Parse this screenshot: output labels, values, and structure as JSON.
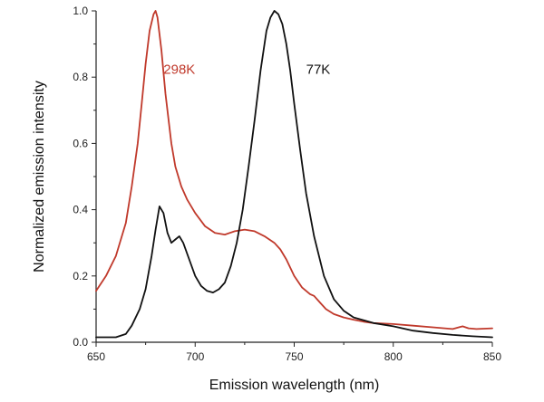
{
  "chart_data": {
    "type": "line",
    "title": "",
    "xlabel": "Emission wavelength (nm)",
    "ylabel": "Normalized emission intensity",
    "xlim": [
      650,
      850
    ],
    "ylim": [
      0,
      1.0
    ],
    "xticks": [
      650,
      700,
      750,
      800,
      850
    ],
    "yticks": [
      0.0,
      0.2,
      0.4,
      0.6,
      0.8,
      1.0
    ],
    "xtick_labels": [
      "650",
      "700",
      "750",
      "800",
      "850"
    ],
    "ytick_labels": [
      "0.0",
      "0.2",
      "0.4",
      "0.6",
      "0.8",
      "1.0"
    ],
    "grid": false,
    "legend": "none",
    "series": [
      {
        "name": "298K",
        "color": "#c0392b",
        "x": [
          650,
          655,
          660,
          665,
          668,
          671,
          673,
          675,
          677,
          679,
          680,
          681,
          683,
          685,
          688,
          690,
          693,
          696,
          700,
          705,
          710,
          715,
          720,
          725,
          730,
          735,
          740,
          743,
          746,
          750,
          754,
          758,
          760,
          763,
          766,
          770,
          775,
          780,
          785,
          790,
          800,
          810,
          820,
          830,
          835,
          838,
          842,
          850
        ],
        "y": [
          0.155,
          0.2,
          0.26,
          0.36,
          0.47,
          0.6,
          0.72,
          0.84,
          0.94,
          0.99,
          1.0,
          0.98,
          0.88,
          0.75,
          0.6,
          0.53,
          0.47,
          0.43,
          0.39,
          0.35,
          0.33,
          0.325,
          0.335,
          0.34,
          0.335,
          0.32,
          0.3,
          0.28,
          0.25,
          0.2,
          0.165,
          0.145,
          0.14,
          0.12,
          0.1,
          0.085,
          0.075,
          0.068,
          0.062,
          0.058,
          0.055,
          0.05,
          0.045,
          0.04,
          0.048,
          0.042,
          0.04,
          0.042
        ]
      },
      {
        "name": "77K",
        "color": "#111111",
        "x": [
          650,
          660,
          665,
          668,
          672,
          675,
          678,
          680,
          682,
          684,
          686,
          688,
          690,
          692,
          694,
          697,
          700,
          703,
          706,
          709,
          712,
          715,
          718,
          721,
          724,
          727,
          730,
          733,
          736,
          738,
          740,
          742,
          744,
          746,
          748,
          750,
          753,
          756,
          760,
          765,
          770,
          775,
          780,
          790,
          800,
          810,
          820,
          830,
          840,
          850
        ],
        "y": [
          0.015,
          0.015,
          0.025,
          0.05,
          0.1,
          0.16,
          0.26,
          0.34,
          0.41,
          0.39,
          0.33,
          0.3,
          0.31,
          0.32,
          0.3,
          0.25,
          0.2,
          0.17,
          0.155,
          0.15,
          0.16,
          0.18,
          0.23,
          0.3,
          0.4,
          0.53,
          0.67,
          0.82,
          0.94,
          0.98,
          1.0,
          0.99,
          0.96,
          0.9,
          0.82,
          0.72,
          0.58,
          0.45,
          0.32,
          0.2,
          0.13,
          0.095,
          0.075,
          0.058,
          0.048,
          0.035,
          0.028,
          0.022,
          0.018,
          0.015
        ]
      }
    ],
    "annotations": [
      {
        "text": "298K",
        "series": "298K",
        "at_x": 684,
        "at_y": 0.81
      },
      {
        "text": "77K",
        "series": "77K",
        "at_x": 756,
        "at_y": 0.81
      }
    ]
  }
}
